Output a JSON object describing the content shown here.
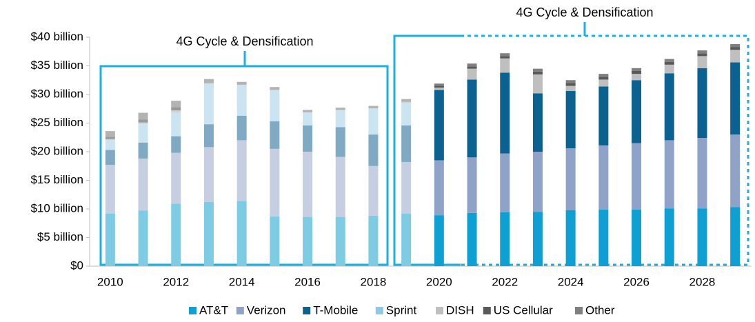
{
  "chart_data": {
    "type": "stacked_bar",
    "categories": [
      "2010",
      null,
      "2012",
      null,
      "2014",
      null,
      "2016",
      null,
      "2018",
      null,
      "2020",
      null,
      "2022",
      null,
      "2024",
      null,
      "2026",
      null,
      "2028",
      null
    ],
    "series": [
      {
        "name": "AT&T",
        "color": "#0ea0d2",
        "colors": [
          "#7ecbe4",
          "#7ecbe4",
          "#7ecbe4",
          "#7ecbe4",
          "#7ecbe4",
          "#7ecbe4",
          "#7ecbe4",
          "#7ecbe4",
          "#7ecbe4",
          "#7ecbe4",
          "#0ea0d2",
          "#0ea0d2",
          "#0ea0d2",
          "#0ea0d2",
          "#0ea0d2",
          "#0ea0d2",
          "#0ea0d2",
          "#0ea0d2",
          "#0ea0d2",
          "#0ea0d2"
        ],
        "values": [
          9.2,
          9.7,
          10.9,
          11.2,
          11.4,
          8.7,
          8.6,
          8.6,
          8.8,
          9.2,
          8.9,
          9.3,
          9.4,
          9.5,
          9.8,
          9.9,
          9.9,
          10.1,
          10.1,
          10.3
        ]
      },
      {
        "name": "Verizon",
        "color": "#8fa2c7",
        "colors": [
          "#c5cfe1",
          "#c5cfe1",
          "#c5cfe1",
          "#c5cfe1",
          "#c5cfe1",
          "#c5cfe1",
          "#c5cfe1",
          "#c5cfe1",
          "#c5cfe1",
          "#c5cfe1",
          "#8fa2c7",
          "#8fa2c7",
          "#8fa2c7",
          "#8fa2c7",
          "#8fa2c7",
          "#8fa2c7",
          "#8fa2c7",
          "#8fa2c7",
          "#8fa2c7",
          "#8fa2c7"
        ],
        "values": [
          8.5,
          9.1,
          8.9,
          9.6,
          10.6,
          11.8,
          11.4,
          10.5,
          8.7,
          9.0,
          9.6,
          9.7,
          10.3,
          10.5,
          10.8,
          11.2,
          11.6,
          11.9,
          12.3,
          12.7
        ]
      },
      {
        "name": "T-Mobile",
        "color": "#0b6190",
        "colors": [
          "#80aac4",
          "#80aac4",
          "#80aac4",
          "#80aac4",
          "#80aac4",
          "#80aac4",
          "#80aac4",
          "#80aac4",
          "#80aac4",
          "#80aac4",
          "#0b6190",
          "#0b6190",
          "#0b6190",
          "#0b6190",
          "#0b6190",
          "#0b6190",
          "#0b6190",
          "#0b6190",
          "#0b6190",
          "#0b6190"
        ],
        "values": [
          2.6,
          2.8,
          2.9,
          4.0,
          4.3,
          4.8,
          4.6,
          5.2,
          5.5,
          6.4,
          12.3,
          13.6,
          14.1,
          10.2,
          10.0,
          10.3,
          11.0,
          11.7,
          12.2,
          12.6
        ]
      },
      {
        "name": "Sprint",
        "color": "#8ccbe8",
        "colors": [
          "#cbe4f2",
          "#cbe4f2",
          "#cbe4f2",
          "#cbe4f2",
          "#cbe4f2",
          "#cbe4f2",
          "#cbe4f2",
          "#cbe4f2",
          "#cbe4f2",
          "#cbe4f2",
          "#8ccbe8",
          "#8ccbe8",
          "#8ccbe8",
          "#8ccbe8",
          "#8ccbe8",
          "#8ccbe8",
          "#8ccbe8",
          "#8ccbe8",
          "#8ccbe8",
          "#8ccbe8"
        ],
        "values": [
          1.7,
          3.2,
          4.1,
          7.0,
          5.3,
          5.4,
          2.2,
          2.9,
          4.5,
          3.9,
          0,
          0,
          0,
          0,
          0,
          0,
          0,
          0,
          0,
          0
        ]
      },
      {
        "name": "DISH",
        "color": "#bfbfbf",
        "colors": [
          "#d4d4d4",
          "#d4d4d4",
          "#d4d4d4",
          "#d4d4d4",
          "#d4d4d4",
          "#d4d4d4",
          "#d4d4d4",
          "#d4d4d4",
          "#d4d4d4",
          "#d4d4d4",
          "#bfbfbf",
          "#bfbfbf",
          "#bfbfbf",
          "#bfbfbf",
          "#bfbfbf",
          "#bfbfbf",
          "#bfbfbf",
          "#bfbfbf",
          "#bfbfbf",
          "#bfbfbf"
        ],
        "values": [
          0.2,
          0.3,
          0.4,
          0.2,
          0.1,
          0.1,
          0.1,
          0.1,
          0.1,
          0.2,
          0.4,
          1.9,
          2.5,
          3.3,
          0.9,
          1.2,
          1.1,
          1.5,
          2.1,
          2.2
        ]
      },
      {
        "name": "US Cellular",
        "color": "#595959",
        "colors": [
          "#9a9a9a",
          "#9a9a9a",
          "#9a9a9a",
          "#9a9a9a",
          "#9a9a9a",
          "#9a9a9a",
          "#9a9a9a",
          "#9a9a9a",
          "#9a9a9a",
          "#9a9a9a",
          "#595959",
          "#595959",
          "#595959",
          "#595959",
          "#595959",
          "#595959",
          "#595959",
          "#595959",
          "#595959",
          "#595959"
        ],
        "values": [
          0.4,
          0.5,
          0.6,
          0,
          0,
          0,
          0,
          0,
          0,
          0,
          0.3,
          0.4,
          0.4,
          0.5,
          0.5,
          0.5,
          0.5,
          0.5,
          0.5,
          0.5
        ]
      },
      {
        "name": "Other",
        "color": "#7f7f7f",
        "colors": [
          "#b3b3b3",
          "#b3b3b3",
          "#b3b3b3",
          "#b3b3b3",
          "#b3b3b3",
          "#b3b3b3",
          "#b3b3b3",
          "#b3b3b3",
          "#b3b3b3",
          "#b3b3b3",
          "#7f7f7f",
          "#7f7f7f",
          "#7f7f7f",
          "#7f7f7f",
          "#7f7f7f",
          "#7f7f7f",
          "#7f7f7f",
          "#7f7f7f",
          "#7f7f7f",
          "#7f7f7f"
        ],
        "values": [
          1.0,
          1.2,
          1.1,
          0.7,
          0.5,
          0.5,
          0.4,
          0.4,
          0.4,
          0.5,
          0.4,
          0.5,
          0.5,
          0.5,
          0.5,
          0.5,
          0.5,
          0.5,
          0.5,
          0.5
        ]
      }
    ],
    "ylim": [
      0,
      40
    ],
    "yticks": [
      {
        "value": 0,
        "label": "$0"
      },
      {
        "value": 5,
        "label": "$5 billion"
      },
      {
        "value": 10,
        "label": "$10 billion"
      },
      {
        "value": 15,
        "label": "$15 billion"
      },
      {
        "value": 20,
        "label": "$20 billion"
      },
      {
        "value": 25,
        "label": "$25 billion"
      },
      {
        "value": 30,
        "label": "$30 billion"
      },
      {
        "value": 35,
        "label": "$35 billion"
      },
      {
        "value": 40,
        "label": "$40 billion"
      }
    ],
    "annotations": [
      "4G Cycle & Densification",
      "4G Cycle & Densification"
    ],
    "legend": "bottom"
  }
}
